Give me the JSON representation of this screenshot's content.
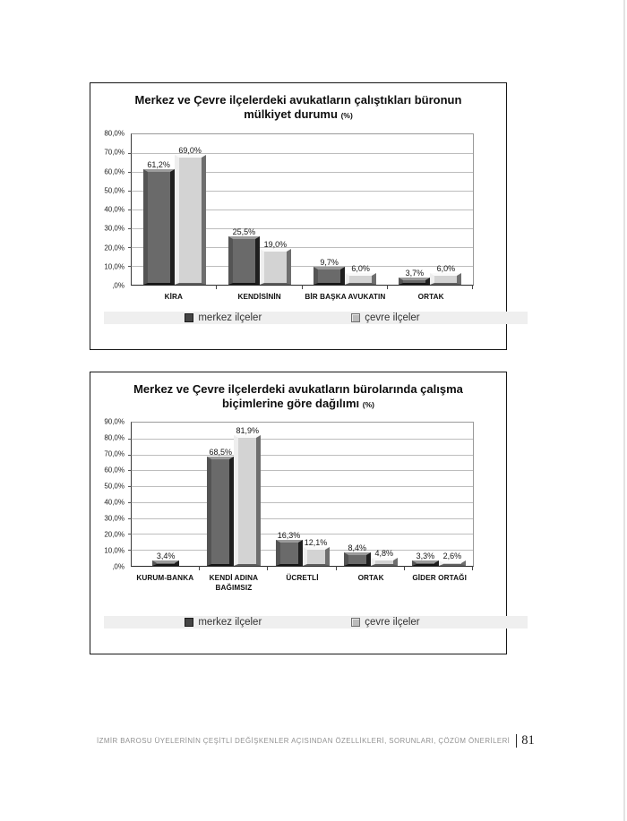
{
  "footer": {
    "text": "İZMİR BAROSU ÜYELERİNİN ÇEŞİTLİ DEĞİŞKENLER AÇISINDAN ÖZELLİKLERİ, SORUNLARI, ÇÖZÜM ÖNERİLERİ",
    "page_number": "81"
  },
  "colors": {
    "merkez_fill": "#6a6a6a",
    "cevre_fill": "#d3d3d3",
    "grid_line": "#bdbdbd",
    "box_border": "#161616",
    "footer_text": "#919191"
  },
  "chart_data": [
    {
      "type": "bar",
      "title": "Merkez ve Çevre ilçelerdeki avukatların çalıştıkları büronun mülkiyet durumu",
      "title_suffix": "(%)",
      "categories": [
        "KİRA",
        "KENDİSİNİN",
        "BİR BAŞKA AVUKATIN",
        "ORTAK"
      ],
      "series": [
        {
          "name": "merkez ilçeler",
          "values": [
            61.2,
            25.5,
            9.7,
            3.7
          ],
          "labels": [
            "61,2%",
            "25,5%",
            "9,7%",
            "3,7%"
          ]
        },
        {
          "name": "çevre ilçeler",
          "values": [
            69.0,
            19.0,
            6.0,
            6.0
          ],
          "labels": [
            "69,0%",
            "19,0%",
            "6,0%",
            "6,0%"
          ]
        }
      ],
      "ylim": [
        0,
        80
      ],
      "ytick_labels": [
        "80,0%",
        "70,0%",
        "60,0%",
        "50,0%",
        "40,0%",
        "30,0%",
        "20,0%",
        "10,0%",
        ",0%"
      ],
      "grid": true,
      "legend_position": "bottom"
    },
    {
      "type": "bar",
      "title": "Merkez ve Çevre ilçelerdeki avukatların bürolarında çalışma biçimlerine göre dağılımı",
      "title_suffix": "(%)",
      "categories": [
        "KURUM-BANKA",
        "KENDİ ADINA BAĞIMSIZ",
        "ÜCRETLİ",
        "ORTAK",
        "GİDER ORTAĞI"
      ],
      "series": [
        {
          "name": "merkez ilçeler",
          "values": [
            3.4,
            68.5,
            16.3,
            8.4,
            3.3
          ],
          "labels": [
            "3,4%",
            "68,5%",
            "16,3%",
            "8,4%",
            "3,3%"
          ]
        },
        {
          "name": "çevre ilçeler",
          "values": [
            null,
            81.9,
            12.1,
            4.8,
            2.6
          ],
          "labels": [
            null,
            "81,9%",
            "12,1%",
            "4,8%",
            "2,6%"
          ]
        }
      ],
      "ylim": [
        0,
        90
      ],
      "ytick_labels": [
        "90,0%",
        "80,0%",
        "70,0%",
        "60,0%",
        "50,0%",
        "40,0%",
        "30,0%",
        "20,0%",
        "10,0%",
        ",0%"
      ],
      "grid": true,
      "legend_position": "bottom"
    }
  ]
}
